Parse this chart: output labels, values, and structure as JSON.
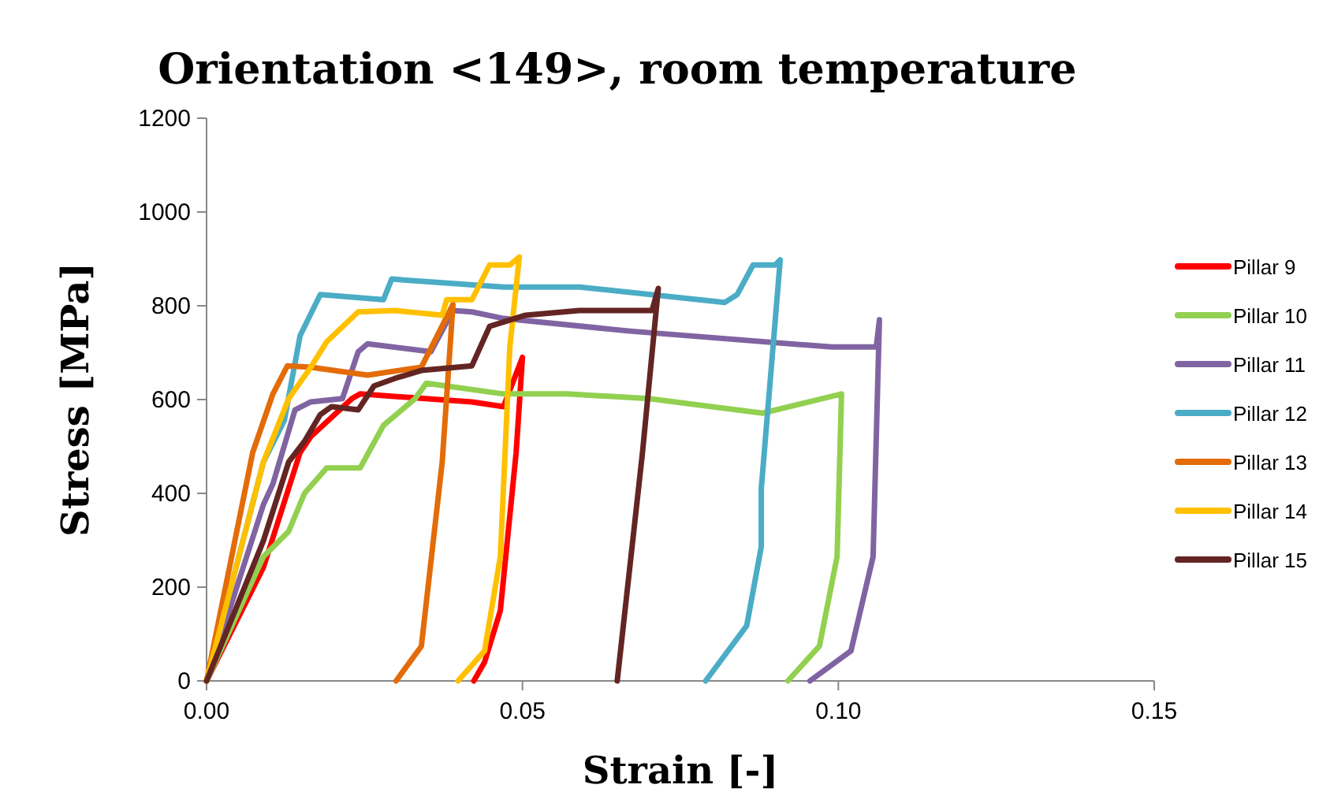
{
  "chart_data": {
    "type": "line",
    "title": "Orientation <149>, room temperature",
    "xlabel": "Strain [-]",
    "ylabel": "Stress [MPa]",
    "xlim": [
      0,
      0.15
    ],
    "xticks": [
      {
        "value": 0,
        "label": "0.00"
      },
      {
        "value": 0.05,
        "label": "0.05"
      },
      {
        "value": 0.1,
        "label": "0.10"
      },
      {
        "value": 0.15,
        "label": "0.15"
      }
    ],
    "ylim": [
      0,
      1200
    ],
    "yticks": [
      0,
      200,
      400,
      600,
      800,
      1000,
      1200
    ],
    "grid": false,
    "legend": "right",
    "marker": "none",
    "line_style": "solid",
    "series": [
      {
        "name": "Pillar 9",
        "color": "#ff0000",
        "x": [
          0,
          0.009,
          0.0148,
          0.0165,
          0.023,
          0.0243,
          0.042,
          0.047,
          0.05,
          0.049,
          0.0465,
          0.044,
          0.0423
        ],
        "values": [
          0,
          242,
          487,
          521,
          602,
          612,
          595,
          585,
          690,
          487,
          150,
          40,
          0
        ]
      },
      {
        "name": "Pillar 10",
        "color": "#92d050",
        "x": [
          0,
          0.009,
          0.013,
          0.0155,
          0.019,
          0.0243,
          0.028,
          0.033,
          0.0348,
          0.047,
          0.057,
          0.07,
          0.088,
          0.1005,
          0.0998,
          0.097,
          0.092
        ],
        "values": [
          0,
          265,
          319,
          400,
          454,
          454,
          545,
          602,
          635,
          612,
          612,
          602,
          571,
          612,
          265,
          74,
          0
        ]
      },
      {
        "name": "Pillar 11",
        "color": "#8064a2",
        "x": [
          0,
          0.009,
          0.0105,
          0.014,
          0.0165,
          0.0215,
          0.024,
          0.0255,
          0.0355,
          0.039,
          0.042,
          0.047,
          0.067,
          0.099,
          0.106,
          0.1065,
          0.1055,
          0.102,
          0.0955
        ],
        "values": [
          0,
          376,
          420,
          578,
          595,
          602,
          702,
          719,
          702,
          790,
          787,
          773,
          746,
          712,
          712,
          770,
          265,
          64,
          0
        ]
      },
      {
        "name": "Pillar 12",
        "color": "#4bacc6",
        "x": [
          0,
          0.009,
          0.0123,
          0.0148,
          0.018,
          0.028,
          0.0293,
          0.047,
          0.059,
          0.082,
          0.084,
          0.0865,
          0.09,
          0.0908,
          0.0878,
          0.0878,
          0.0855,
          0.079
        ],
        "values": [
          0,
          467,
          555,
          736,
          824,
          813,
          857,
          840,
          840,
          807,
          824,
          887,
          887,
          898,
          410,
          286,
          118,
          0
        ]
      },
      {
        "name": "Pillar 13",
        "color": "#e36c09",
        "x": [
          0,
          0.0073,
          0.0105,
          0.0128,
          0.0165,
          0.0255,
          0.034,
          0.0365,
          0.039,
          0.0373,
          0.034,
          0.03
        ],
        "values": [
          0,
          487,
          612,
          672,
          669,
          652,
          669,
          736,
          803,
          467,
          74,
          0
        ]
      },
      {
        "name": "Pillar 14",
        "color": "#ffc000",
        "x": [
          0,
          0.009,
          0.013,
          0.0165,
          0.019,
          0.024,
          0.0298,
          0.0373,
          0.038,
          0.042,
          0.0448,
          0.048,
          0.0495,
          0.048,
          0.0465,
          0.044,
          0.0398
        ],
        "values": [
          0,
          467,
          602,
          669,
          723,
          787,
          790,
          780,
          813,
          813,
          887,
          887,
          904,
          712,
          265,
          64,
          0
        ]
      },
      {
        "name": "Pillar 15",
        "color": "#632523",
        "x": [
          0,
          0.009,
          0.013,
          0.0155,
          0.018,
          0.0198,
          0.024,
          0.0265,
          0.0298,
          0.034,
          0.042,
          0.0448,
          0.0505,
          0.059,
          0.0705,
          0.0715,
          0.069,
          0.065
        ],
        "values": [
          0,
          299,
          467,
          511,
          568,
          585,
          578,
          629,
          645,
          662,
          672,
          756,
          780,
          790,
          790,
          837,
          487,
          0
        ]
      }
    ]
  }
}
